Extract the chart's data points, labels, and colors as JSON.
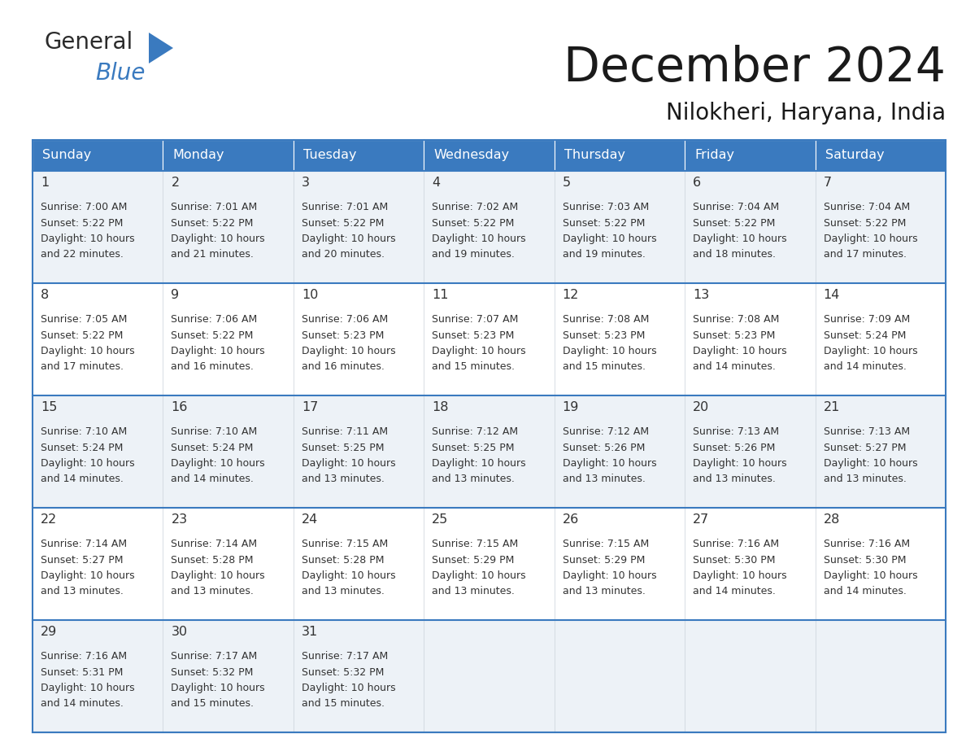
{
  "title": "December 2024",
  "subtitle": "Nilokheri, Haryana, India",
  "header_color": "#3a7abf",
  "header_text_color": "#ffffff",
  "cell_bg_even": "#edf2f7",
  "cell_bg_odd": "#ffffff",
  "text_color": "#333333",
  "border_color": "#3a7abf",
  "days_of_week": [
    "Sunday",
    "Monday",
    "Tuesday",
    "Wednesday",
    "Thursday",
    "Friday",
    "Saturday"
  ],
  "calendar_data": [
    [
      {
        "day": "1",
        "sunrise": "7:00 AM",
        "sunset": "5:22 PM",
        "daylight_h": "10 hours",
        "daylight_m": "and 22 minutes."
      },
      {
        "day": "2",
        "sunrise": "7:01 AM",
        "sunset": "5:22 PM",
        "daylight_h": "10 hours",
        "daylight_m": "and 21 minutes."
      },
      {
        "day": "3",
        "sunrise": "7:01 AM",
        "sunset": "5:22 PM",
        "daylight_h": "10 hours",
        "daylight_m": "and 20 minutes."
      },
      {
        "day": "4",
        "sunrise": "7:02 AM",
        "sunset": "5:22 PM",
        "daylight_h": "10 hours",
        "daylight_m": "and 19 minutes."
      },
      {
        "day": "5",
        "sunrise": "7:03 AM",
        "sunset": "5:22 PM",
        "daylight_h": "10 hours",
        "daylight_m": "and 19 minutes."
      },
      {
        "day": "6",
        "sunrise": "7:04 AM",
        "sunset": "5:22 PM",
        "daylight_h": "10 hours",
        "daylight_m": "and 18 minutes."
      },
      {
        "day": "7",
        "sunrise": "7:04 AM",
        "sunset": "5:22 PM",
        "daylight_h": "10 hours",
        "daylight_m": "and 17 minutes."
      }
    ],
    [
      {
        "day": "8",
        "sunrise": "7:05 AM",
        "sunset": "5:22 PM",
        "daylight_h": "10 hours",
        "daylight_m": "and 17 minutes."
      },
      {
        "day": "9",
        "sunrise": "7:06 AM",
        "sunset": "5:22 PM",
        "daylight_h": "10 hours",
        "daylight_m": "and 16 minutes."
      },
      {
        "day": "10",
        "sunrise": "7:06 AM",
        "sunset": "5:23 PM",
        "daylight_h": "10 hours",
        "daylight_m": "and 16 minutes."
      },
      {
        "day": "11",
        "sunrise": "7:07 AM",
        "sunset": "5:23 PM",
        "daylight_h": "10 hours",
        "daylight_m": "and 15 minutes."
      },
      {
        "day": "12",
        "sunrise": "7:08 AM",
        "sunset": "5:23 PM",
        "daylight_h": "10 hours",
        "daylight_m": "and 15 minutes."
      },
      {
        "day": "13",
        "sunrise": "7:08 AM",
        "sunset": "5:23 PM",
        "daylight_h": "10 hours",
        "daylight_m": "and 14 minutes."
      },
      {
        "day": "14",
        "sunrise": "7:09 AM",
        "sunset": "5:24 PM",
        "daylight_h": "10 hours",
        "daylight_m": "and 14 minutes."
      }
    ],
    [
      {
        "day": "15",
        "sunrise": "7:10 AM",
        "sunset": "5:24 PM",
        "daylight_h": "10 hours",
        "daylight_m": "and 14 minutes."
      },
      {
        "day": "16",
        "sunrise": "7:10 AM",
        "sunset": "5:24 PM",
        "daylight_h": "10 hours",
        "daylight_m": "and 14 minutes."
      },
      {
        "day": "17",
        "sunrise": "7:11 AM",
        "sunset": "5:25 PM",
        "daylight_h": "10 hours",
        "daylight_m": "and 13 minutes."
      },
      {
        "day": "18",
        "sunrise": "7:12 AM",
        "sunset": "5:25 PM",
        "daylight_h": "10 hours",
        "daylight_m": "and 13 minutes."
      },
      {
        "day": "19",
        "sunrise": "7:12 AM",
        "sunset": "5:26 PM",
        "daylight_h": "10 hours",
        "daylight_m": "and 13 minutes."
      },
      {
        "day": "20",
        "sunrise": "7:13 AM",
        "sunset": "5:26 PM",
        "daylight_h": "10 hours",
        "daylight_m": "and 13 minutes."
      },
      {
        "day": "21",
        "sunrise": "7:13 AM",
        "sunset": "5:27 PM",
        "daylight_h": "10 hours",
        "daylight_m": "and 13 minutes."
      }
    ],
    [
      {
        "day": "22",
        "sunrise": "7:14 AM",
        "sunset": "5:27 PM",
        "daylight_h": "10 hours",
        "daylight_m": "and 13 minutes."
      },
      {
        "day": "23",
        "sunrise": "7:14 AM",
        "sunset": "5:28 PM",
        "daylight_h": "10 hours",
        "daylight_m": "and 13 minutes."
      },
      {
        "day": "24",
        "sunrise": "7:15 AM",
        "sunset": "5:28 PM",
        "daylight_h": "10 hours",
        "daylight_m": "and 13 minutes."
      },
      {
        "day": "25",
        "sunrise": "7:15 AM",
        "sunset": "5:29 PM",
        "daylight_h": "10 hours",
        "daylight_m": "and 13 minutes."
      },
      {
        "day": "26",
        "sunrise": "7:15 AM",
        "sunset": "5:29 PM",
        "daylight_h": "10 hours",
        "daylight_m": "and 13 minutes."
      },
      {
        "day": "27",
        "sunrise": "7:16 AM",
        "sunset": "5:30 PM",
        "daylight_h": "10 hours",
        "daylight_m": "and 14 minutes."
      },
      {
        "day": "28",
        "sunrise": "7:16 AM",
        "sunset": "5:30 PM",
        "daylight_h": "10 hours",
        "daylight_m": "and 14 minutes."
      }
    ],
    [
      {
        "day": "29",
        "sunrise": "7:16 AM",
        "sunset": "5:31 PM",
        "daylight_h": "10 hours",
        "daylight_m": "and 14 minutes."
      },
      {
        "day": "30",
        "sunrise": "7:17 AM",
        "sunset": "5:32 PM",
        "daylight_h": "10 hours",
        "daylight_m": "and 15 minutes."
      },
      {
        "day": "31",
        "sunrise": "7:17 AM",
        "sunset": "5:32 PM",
        "daylight_h": "10 hours",
        "daylight_m": "and 15 minutes."
      },
      null,
      null,
      null,
      null
    ]
  ]
}
